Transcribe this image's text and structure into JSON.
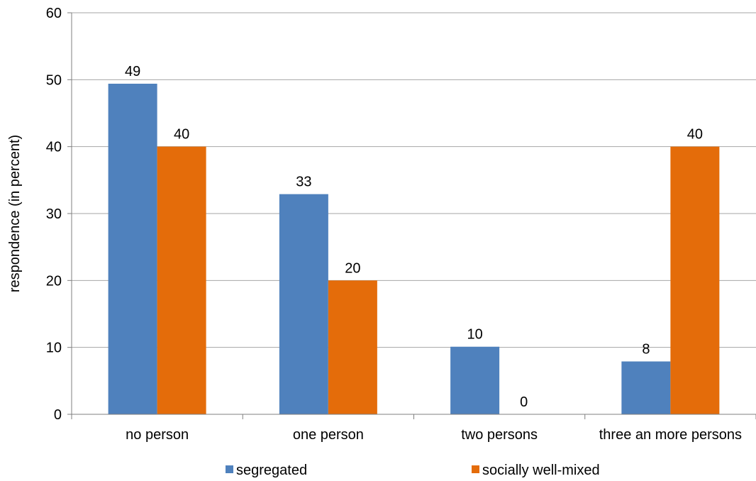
{
  "chart_data": {
    "type": "bar",
    "title": "",
    "xlabel": "",
    "ylabel": "respondence (in percent)",
    "ylim": [
      0,
      60
    ],
    "yticks": [
      0,
      10,
      20,
      30,
      40,
      50,
      60
    ],
    "grid": true,
    "legend_position": "bottom",
    "categories": [
      "no person",
      "one person",
      "two persons",
      "three an more persons"
    ],
    "series": [
      {
        "name": "segregated",
        "color": "#4F81BD",
        "values": [
          49.4,
          32.9,
          10.1,
          7.9
        ],
        "labels": [
          "49",
          "33",
          "10",
          "8"
        ]
      },
      {
        "name": "socially well-mixed",
        "color": "#E46C0A",
        "values": [
          40,
          20,
          0,
          40
        ],
        "labels": [
          "40",
          "20",
          "0",
          "40"
        ]
      }
    ]
  }
}
